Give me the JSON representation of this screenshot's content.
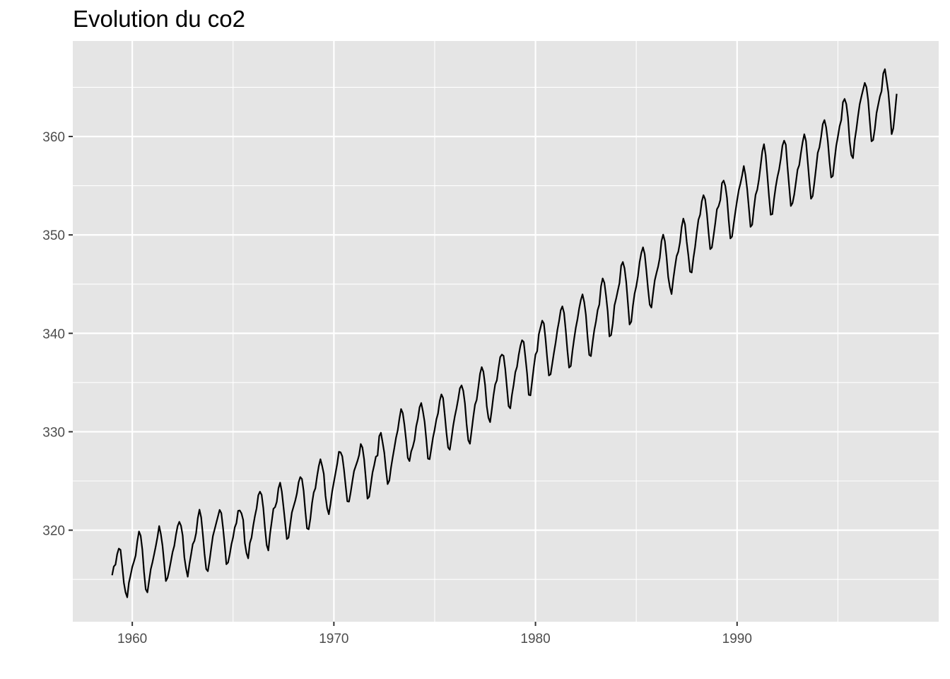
{
  "chart_data": {
    "type": "line",
    "title": "Evolution du co2",
    "xlabel": "",
    "ylabel": "",
    "xlim": [
      1957.05,
      2000.0
    ],
    "ylim": [
      310.7,
      369.7
    ],
    "x_ticks": [
      1960,
      1970,
      1980,
      1990
    ],
    "x_tick_labels": [
      "1960",
      "1970",
      "1980",
      "1990"
    ],
    "y_ticks": [
      320,
      330,
      340,
      350,
      360
    ],
    "y_tick_labels": [
      "320",
      "330",
      "340",
      "350",
      "360"
    ],
    "grid": true,
    "background": "#e5e5e5",
    "line_color": "#000000",
    "series": [
      {
        "start_year": 1959,
        "frequency": "monthly",
        "values": [
          315.42,
          316.31,
          316.5,
          317.56,
          318.13,
          318.0,
          316.39,
          314.65,
          313.68,
          313.18,
          314.66,
          315.43,
          316.27,
          316.81,
          317.42,
          318.87,
          319.87,
          319.43,
          318.01,
          315.74,
          314.0,
          313.68,
          314.84,
          316.03,
          316.73,
          317.54,
          318.38,
          319.31,
          320.42,
          319.61,
          318.42,
          316.63,
          314.83,
          315.16,
          315.94,
          316.85,
          317.78,
          318.4,
          319.53,
          320.42,
          320.85,
          320.45,
          319.45,
          317.25,
          316.11,
          315.27,
          316.53,
          317.53,
          318.58,
          318.92,
          319.7,
          321.22,
          322.08,
          321.31,
          319.58,
          317.61,
          316.05,
          315.83,
          316.91,
          318.2,
          319.41,
          320.07,
          320.74,
          321.4,
          322.06,
          321.73,
          320.27,
          318.54,
          316.54,
          316.71,
          317.53,
          318.55,
          319.27,
          320.28,
          320.73,
          321.97,
          322.0,
          321.71,
          321.05,
          318.71,
          317.66,
          317.14,
          318.7,
          319.25,
          320.46,
          321.43,
          322.23,
          323.54,
          323.91,
          323.59,
          322.24,
          320.2,
          318.48,
          317.94,
          319.63,
          320.87,
          322.17,
          322.34,
          322.88,
          324.25,
          324.83,
          323.93,
          322.38,
          320.76,
          319.1,
          319.24,
          320.56,
          321.8,
          322.4,
          322.99,
          323.73,
          324.86,
          325.4,
          325.2,
          323.98,
          321.95,
          320.18,
          320.09,
          321.16,
          322.74,
          323.83,
          324.26,
          325.47,
          326.5,
          327.21,
          326.54,
          325.72,
          323.5,
          322.22,
          321.62,
          322.69,
          323.95,
          324.89,
          325.82,
          326.77,
          327.97,
          327.91,
          327.5,
          326.18,
          324.53,
          322.93,
          322.9,
          323.85,
          324.96,
          326.01,
          326.51,
          327.01,
          327.62,
          328.76,
          328.4,
          327.2,
          325.27,
          323.2,
          323.4,
          324.63,
          325.85,
          326.6,
          327.47,
          327.58,
          329.56,
          329.9,
          328.92,
          327.88,
          326.16,
          324.68,
          325.04,
          326.34,
          327.39,
          328.37,
          329.4,
          330.14,
          331.33,
          332.31,
          331.9,
          330.7,
          329.15,
          327.35,
          327.02,
          327.99,
          328.48,
          329.18,
          330.55,
          331.32,
          332.48,
          332.92,
          332.08,
          331.01,
          329.23,
          327.27,
          327.21,
          328.29,
          329.41,
          330.23,
          331.25,
          331.87,
          333.14,
          333.8,
          333.43,
          331.73,
          329.9,
          328.4,
          328.17,
          329.32,
          330.59,
          331.58,
          332.39,
          333.33,
          334.41,
          334.71,
          334.17,
          332.89,
          330.77,
          329.14,
          328.78,
          330.14,
          331.52,
          332.75,
          333.24,
          334.53,
          335.9,
          336.57,
          336.1,
          334.76,
          332.59,
          331.42,
          330.98,
          332.24,
          333.68,
          334.8,
          335.22,
          336.47,
          337.59,
          337.84,
          337.72,
          336.37,
          334.51,
          332.6,
          332.38,
          333.75,
          334.78,
          336.05,
          336.59,
          337.79,
          338.71,
          339.3,
          339.12,
          337.56,
          335.92,
          333.75,
          333.7,
          335.12,
          336.56,
          337.84,
          338.19,
          339.91,
          340.6,
          341.29,
          341.0,
          339.39,
          337.43,
          335.72,
          335.84,
          336.93,
          338.04,
          339.06,
          340.3,
          341.21,
          342.33,
          342.74,
          342.08,
          340.32,
          338.26,
          336.52,
          336.68,
          338.19,
          339.44,
          340.57,
          341.44,
          342.53,
          343.39,
          343.96,
          343.18,
          341.88,
          339.65,
          337.81,
          337.69,
          339.09,
          340.32,
          341.2,
          342.35,
          342.93,
          344.77,
          345.58,
          345.14,
          343.81,
          342.21,
          339.69,
          339.82,
          340.98,
          342.82,
          343.52,
          344.33,
          345.11,
          346.88,
          347.25,
          346.62,
          345.22,
          343.11,
          340.9,
          341.18,
          342.8,
          344.04,
          344.79,
          345.82,
          347.25,
          348.17,
          348.74,
          348.07,
          346.38,
          344.51,
          342.92,
          342.62,
          344.06,
          345.38,
          346.11,
          346.78,
          347.68,
          349.37,
          350.03,
          349.37,
          347.76,
          345.73,
          344.68,
          343.99,
          345.48,
          346.72,
          347.84,
          348.29,
          349.23,
          350.8,
          351.66,
          351.07,
          349.33,
          347.92,
          346.27,
          346.18,
          347.64,
          348.78,
          350.25,
          351.54,
          352.05,
          353.41,
          354.04,
          353.62,
          352.22,
          350.27,
          348.55,
          348.72,
          349.91,
          351.18,
          352.6,
          352.92,
          353.53,
          355.26,
          355.52,
          354.97,
          353.75,
          351.52,
          349.64,
          349.83,
          351.14,
          352.37,
          353.5,
          354.55,
          355.23,
          356.04,
          357.0,
          356.07,
          354.67,
          352.76,
          350.82,
          351.04,
          352.69,
          354.07,
          354.59,
          355.63,
          357.03,
          358.48,
          359.22,
          358.12,
          356.06,
          353.92,
          352.05,
          352.11,
          353.64,
          354.89,
          355.88,
          356.63,
          357.72,
          359.07,
          359.58,
          359.17,
          356.94,
          354.92,
          352.94,
          353.23,
          354.09,
          355.33,
          356.63,
          357.1,
          358.32,
          359.41,
          360.23,
          359.55,
          357.53,
          355.48,
          353.67,
          353.95,
          355.3,
          356.78,
          358.34,
          358.89,
          359.95,
          361.25,
          361.67,
          360.94,
          359.55,
          357.49,
          355.84,
          356.0,
          357.59,
          359.05,
          359.98,
          361.03,
          361.66,
          363.48,
          363.82,
          363.3,
          361.94,
          359.5,
          358.11,
          357.8,
          359.61,
          360.74,
          362.09,
          363.29,
          364.06,
          364.76,
          365.45,
          365.01,
          363.7,
          361.54,
          359.51,
          359.65,
          360.8,
          362.38,
          363.23,
          364.06,
          364.61,
          366.4,
          366.84,
          365.68,
          364.52,
          362.57,
          360.24,
          360.83,
          362.49,
          364.34
        ]
      }
    ]
  }
}
